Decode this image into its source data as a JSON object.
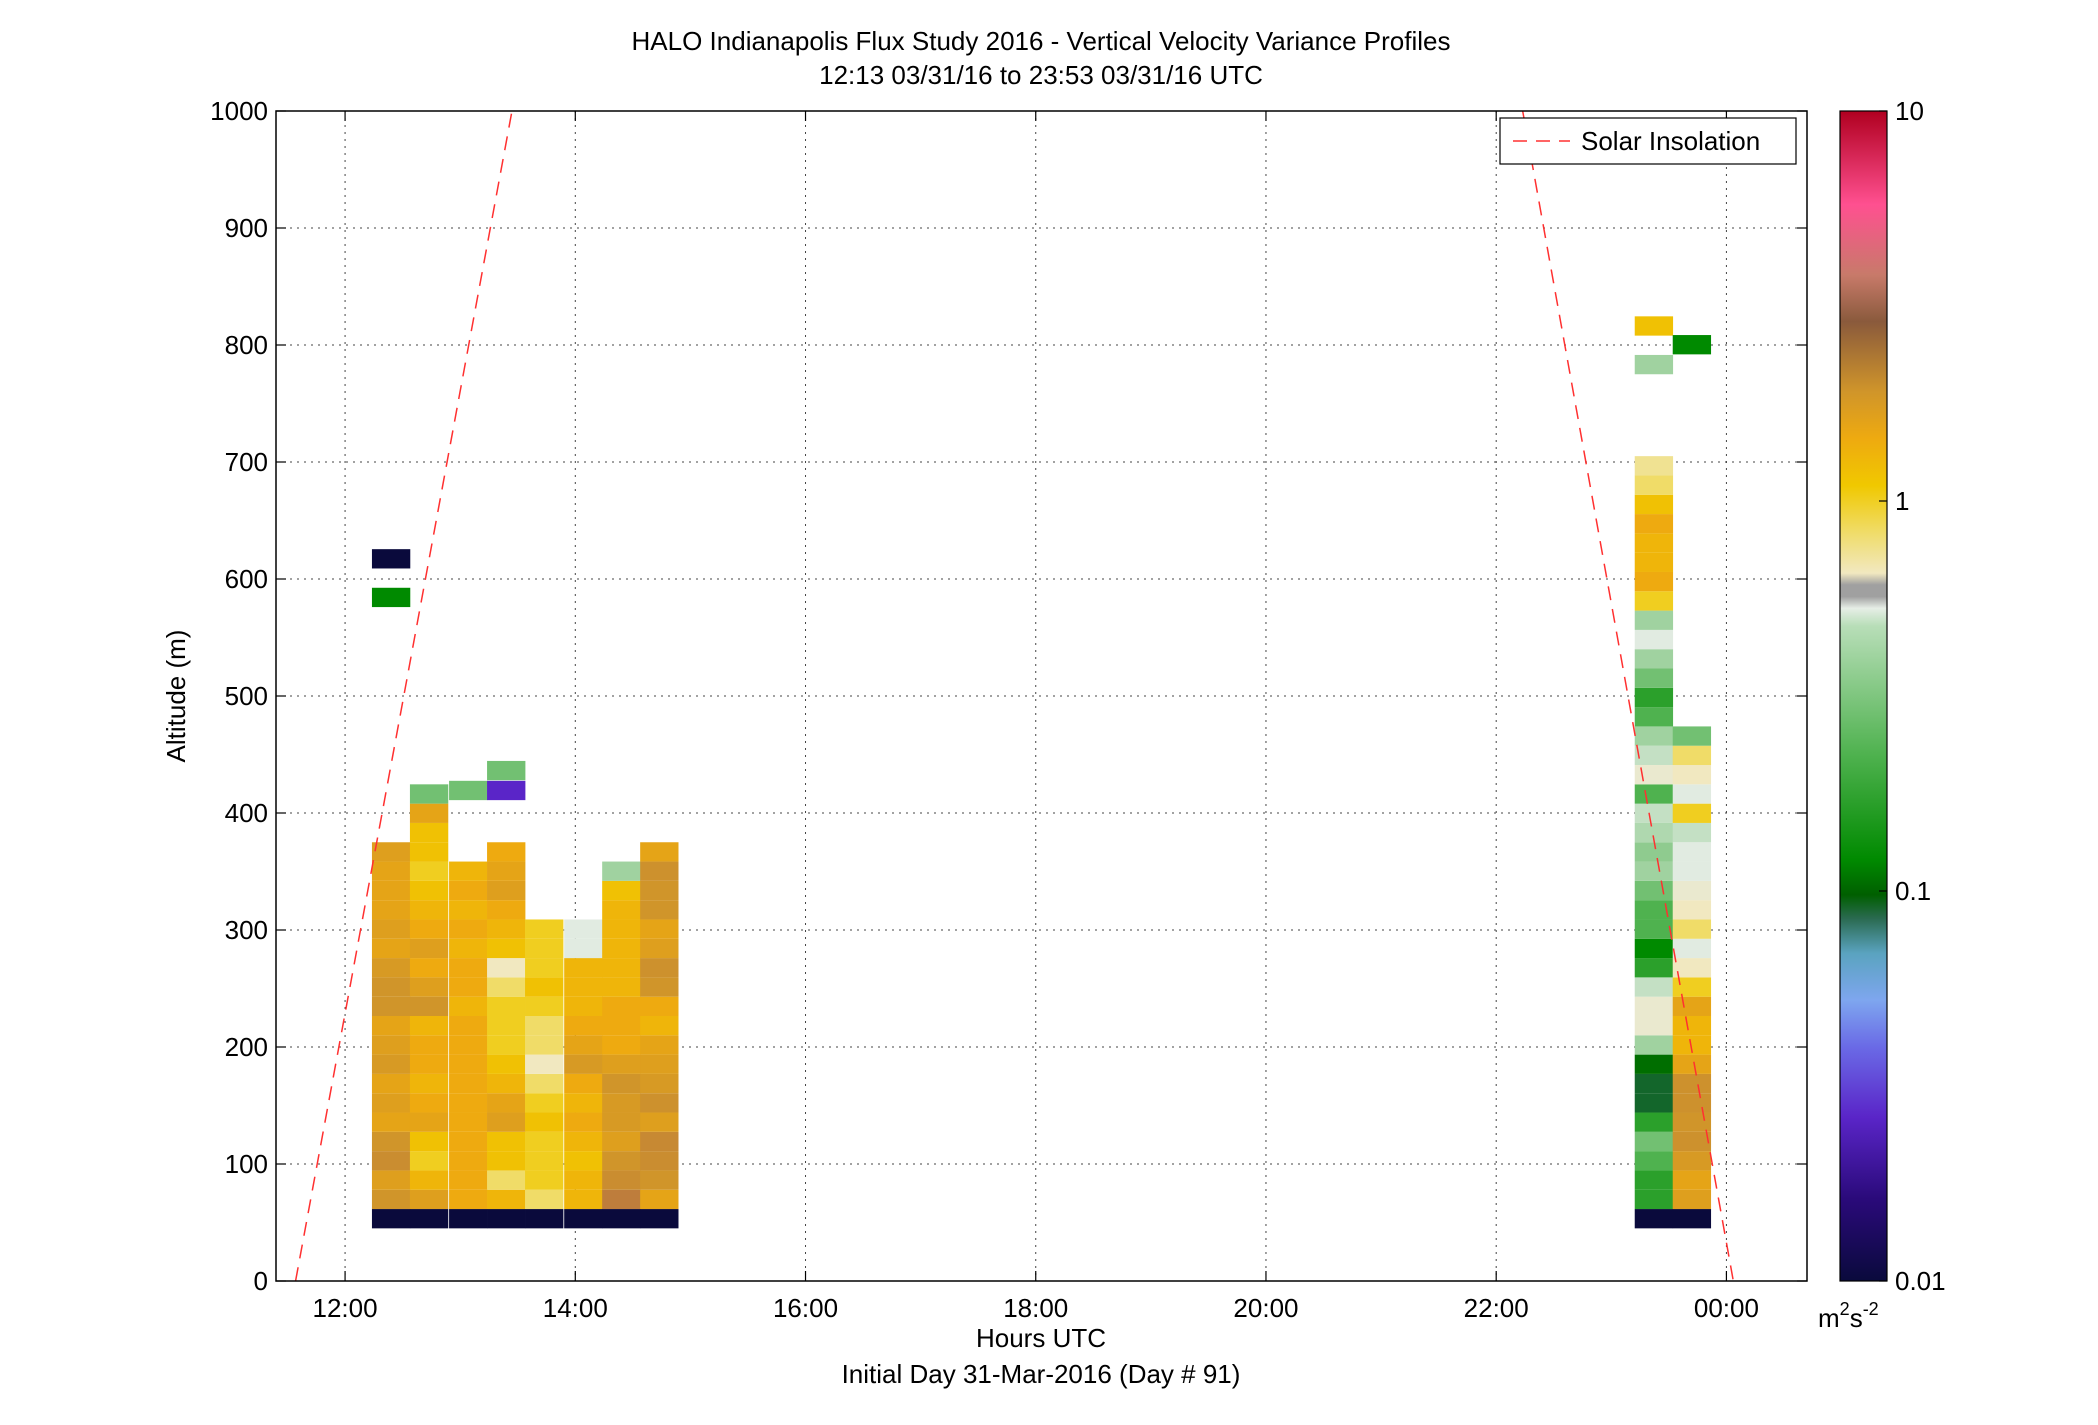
{
  "chart_data": {
    "type": "heatmap",
    "title": "HALO Indianapolis Flux Study 2016 - Vertical Velocity Variance Profiles",
    "subtitle": "12:13 03/31/16 to 23:53 03/31/16  UTC",
    "xlabel": "Hours UTC",
    "xlabel2": "Initial Day 31-Mar-2016 (Day # 91)",
    "ylabel": "Altitude (m)",
    "xlim": [
      11.4,
      24.7
    ],
    "ylim": [
      0,
      1000
    ],
    "x_ticks": [
      12,
      14,
      16,
      18,
      20,
      22,
      24
    ],
    "x_tick_labels": [
      "12:00",
      "14:00",
      "16:00",
      "18:00",
      "20:00",
      "22:00",
      "00:00"
    ],
    "y_ticks": [
      0,
      100,
      200,
      300,
      400,
      500,
      600,
      700,
      800,
      900,
      1000
    ],
    "y_tick_labels": [
      "0",
      "100",
      "200",
      "300",
      "400",
      "500",
      "600",
      "700",
      "800",
      "900",
      "1000"
    ],
    "grid": true,
    "legend": {
      "position": "top-right",
      "entries": [
        "Solar Insolation"
      ]
    },
    "colorbar": {
      "scale": "log",
      "range": [
        0.01,
        10
      ],
      "tick_labels": [
        "10",
        "1",
        "0.1",
        "0.01"
      ],
      "tick_values": [
        10,
        1,
        0.1,
        0.01
      ],
      "unit_base": "m",
      "unit_sup1": "2",
      "unit_mid": "s",
      "unit_sup2": "-2"
    },
    "bin_width_hours": 0.333,
    "bin_height_m": 16.5,
    "solar_insolation": [
      {
        "x": [
          11.57,
          13.45
        ],
        "y": [
          0,
          1000
        ]
      },
      {
        "x": [
          22.23,
          24.06
        ],
        "y": [
          1000,
          0
        ]
      }
    ],
    "profiles": [
      {
        "t": 12.4,
        "v": [
          0.01,
          1.3,
          1.1,
          1.5,
          1.3,
          1.0,
          1.1,
          1.0,
          1.2,
          1.1,
          1.0,
          1.3,
          1.3,
          1.2,
          1.0,
          1.1,
          1.0,
          1.0,
          1.0,
          1.1
        ]
      },
      {
        "t": 12.73,
        "v": [
          0.01,
          1.1,
          0.8,
          0.6,
          0.7,
          1.0,
          0.9,
          0.8,
          0.9,
          0.9,
          0.8,
          1.3,
          1.1,
          0.9,
          1.1,
          0.9,
          0.8,
          0.7,
          0.6,
          0.7,
          0.7,
          1.0,
          0.15
        ]
      },
      {
        "t": 13.07,
        "v": [
          0.01,
          0.9,
          0.9,
          0.9,
          0.9,
          0.9,
          0.9,
          0.9,
          0.9,
          0.9,
          0.9,
          0.8,
          0.9,
          0.9,
          0.8,
          0.9,
          0.8,
          0.9,
          0.8
        ]
      },
      {
        "t": 13.4,
        "v": [
          0.01,
          0.8,
          0.5,
          0.7,
          0.7,
          1.1,
          1.0,
          0.8,
          0.7,
          0.6,
          0.6,
          0.6,
          0.5,
          0.4,
          0.7,
          0.8,
          0.9,
          1.1,
          1.0,
          0.9
        ]
      },
      {
        "t": 13.73,
        "v": [
          0.01,
          0.5,
          0.6,
          0.6,
          0.6,
          0.7,
          0.6,
          0.5,
          0.4,
          0.5,
          0.5,
          0.6,
          0.7,
          0.6,
          0.6,
          0.6
        ]
      },
      {
        "t": 14.07,
        "v": [
          0.01,
          0.8,
          0.8,
          0.7,
          0.8,
          0.9,
          0.8,
          0.9,
          1.2,
          1.0,
          0.9,
          0.8,
          0.8,
          0.8,
          0.3,
          0.3
        ]
      },
      {
        "t": 14.4,
        "v": [
          0.01,
          2.0,
          1.5,
          1.3,
          1.1,
          1.2,
          1.2,
          1.3,
          1.1,
          0.9,
          0.9,
          0.9,
          0.8,
          0.8,
          0.8,
          0.8,
          0.8,
          0.7,
          0.2
        ]
      },
      {
        "t": 14.73,
        "v": [
          0.01,
          1.0,
          1.3,
          1.5,
          1.6,
          1.1,
          1.4,
          1.2,
          1.1,
          1.0,
          0.8,
          0.9,
          1.3,
          1.4,
          1.1,
          1.0,
          1.3,
          1.3,
          1.4,
          1.0
        ]
      },
      {
        "t": 23.37,
        "v": [
          0.01,
          0.1,
          0.1,
          0.12,
          0.15,
          0.1,
          0.06,
          0.06,
          0.07,
          0.2,
          0.35,
          0.35,
          0.25,
          0.1,
          0.08,
          0.12,
          0.12,
          0.15,
          0.2,
          0.18,
          0.22,
          0.25,
          0.12,
          0.35,
          0.25,
          0.2,
          0.12,
          0.1,
          0.15,
          0.2,
          0.3,
          0.2,
          0.6,
          0.9,
          0.8,
          0.8,
          0.9,
          0.7,
          0.5,
          0.45
        ],
        "extra": [
          {
            "y": 775,
            "v": 0.2
          },
          {
            "y": 808,
            "v": 0.7
          }
        ]
      },
      {
        "t": 23.7,
        "v": [
          0.01,
          1.1,
          1.0,
          1.2,
          1.4,
          1.3,
          1.4,
          1.4,
          1.0,
          0.8,
          0.8,
          1.0,
          0.6,
          0.4,
          0.3,
          0.5,
          0.4,
          0.35,
          0.3,
          0.3,
          0.25,
          0.6,
          0.3,
          0.4,
          0.5,
          0.15
        ],
        "extra": [
          {
            "y": 792,
            "v": 0.08
          }
        ]
      },
      {
        "t": 12.4,
        "v": [],
        "extra": [
          {
            "y": 576,
            "v": 0.08
          },
          {
            "y": 609,
            "v": 0.01
          }
        ]
      },
      {
        "t": 13.07,
        "v": [],
        "extra": [
          {
            "y": 411,
            "v": 0.15
          }
        ]
      },
      {
        "t": 13.4,
        "v": [],
        "extra": [
          {
            "y": 411,
            "v": 0.025
          },
          {
            "y": 428,
            "v": 0.15
          }
        ]
      }
    ]
  }
}
